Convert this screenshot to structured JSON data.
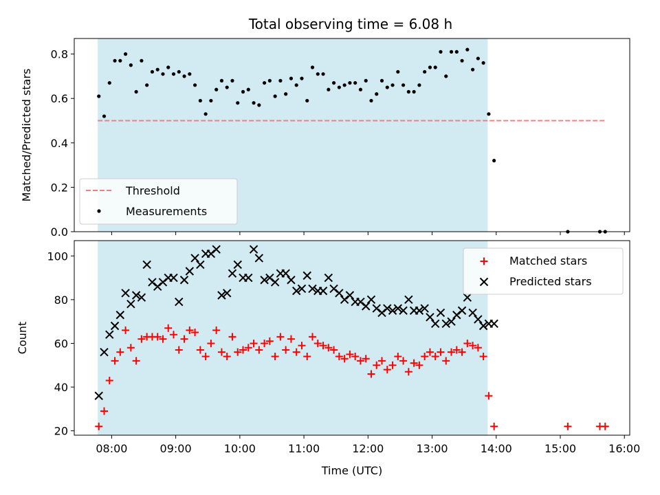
{
  "title": "Total observing time = 6.08 h",
  "colors": {
    "shade": "#add8e6",
    "threshold": "#f08080",
    "measurement": "#000000",
    "matched": "#ff0000",
    "predicted": "#000000"
  },
  "chart_data": [
    {
      "type": "scatter",
      "title": "Total observing time = 6.08 h",
      "xlabel": "",
      "ylabel": "Matched/Predicted stars",
      "ylim": [
        0,
        0.87
      ],
      "yticks": [
        "0.0",
        "0.2",
        "0.4",
        "0.6",
        "0.8"
      ],
      "shaded_span": [
        "07:47",
        "13:52"
      ],
      "legend_position": "lower-left",
      "threshold": {
        "name": "Threshold",
        "value": 0.5,
        "x_range": [
          "07:47",
          "15:42"
        ],
        "style": "dashed"
      },
      "series": [
        {
          "name": "Measurements",
          "x": [
            "07:48",
            "07:53",
            "07:58",
            "08:03",
            "08:08",
            "08:13",
            "08:18",
            "08:23",
            "08:28",
            "08:33",
            "08:38",
            "08:43",
            "08:48",
            "08:53",
            "08:58",
            "09:03",
            "09:08",
            "09:13",
            "09:18",
            "09:23",
            "09:28",
            "09:33",
            "09:38",
            "09:43",
            "09:48",
            "09:53",
            "09:58",
            "10:03",
            "10:08",
            "10:13",
            "10:18",
            "10:23",
            "10:28",
            "10:33",
            "10:38",
            "10:43",
            "10:48",
            "10:53",
            "10:58",
            "11:03",
            "11:08",
            "11:13",
            "11:18",
            "11:23",
            "11:28",
            "11:33",
            "11:38",
            "11:43",
            "11:48",
            "11:53",
            "11:58",
            "12:03",
            "12:08",
            "12:13",
            "12:18",
            "12:23",
            "12:28",
            "12:33",
            "12:38",
            "12:43",
            "12:48",
            "12:53",
            "12:58",
            "13:03",
            "13:08",
            "13:13",
            "13:18",
            "13:23",
            "13:28",
            "13:33",
            "13:38",
            "13:43",
            "13:48",
            "13:53",
            "13:58",
            "15:07",
            "15:37",
            "15:42"
          ],
          "y": [
            0.61,
            0.52,
            0.67,
            0.77,
            0.77,
            0.8,
            0.75,
            0.63,
            0.77,
            0.66,
            0.72,
            0.73,
            0.71,
            0.74,
            0.71,
            0.72,
            0.7,
            0.71,
            0.66,
            0.59,
            0.53,
            0.59,
            0.64,
            0.68,
            0.65,
            0.68,
            0.58,
            0.63,
            0.64,
            0.58,
            0.57,
            0.67,
            0.68,
            0.61,
            0.68,
            0.62,
            0.69,
            0.66,
            0.69,
            0.59,
            0.74,
            0.71,
            0.71,
            0.64,
            0.67,
            0.65,
            0.66,
            0.67,
            0.67,
            0.64,
            0.68,
            0.59,
            0.62,
            0.68,
            0.65,
            0.66,
            0.72,
            0.66,
            0.63,
            0.63,
            0.66,
            0.72,
            0.74,
            0.74,
            0.81,
            0.7,
            0.81,
            0.81,
            0.77,
            0.82,
            0.73,
            0.78,
            0.76,
            0.53,
            0.32,
            0.0,
            0.0,
            0.0
          ]
        }
      ]
    },
    {
      "type": "scatter",
      "xlabel": "Time (UTC)",
      "ylabel": "Count",
      "ylim": [
        18,
        107
      ],
      "yticks": [
        "20",
        "40",
        "60",
        "80",
        "100"
      ],
      "xticks": [
        "08:00",
        "09:00",
        "10:00",
        "11:00",
        "12:00",
        "13:00",
        "14:00",
        "15:00",
        "16:00"
      ],
      "xlim": [
        "07:25",
        "16:05"
      ],
      "shaded_span": [
        "07:47",
        "13:52"
      ],
      "legend_position": "upper-right",
      "series": [
        {
          "name": "Matched stars",
          "marker": "+",
          "x": [
            "07:48",
            "07:53",
            "07:58",
            "08:03",
            "08:08",
            "08:13",
            "08:18",
            "08:23",
            "08:28",
            "08:33",
            "08:38",
            "08:43",
            "08:48",
            "08:53",
            "08:58",
            "09:03",
            "09:08",
            "09:13",
            "09:18",
            "09:23",
            "09:28",
            "09:33",
            "09:38",
            "09:43",
            "09:48",
            "09:53",
            "09:58",
            "10:03",
            "10:08",
            "10:13",
            "10:18",
            "10:23",
            "10:28",
            "10:33",
            "10:38",
            "10:43",
            "10:48",
            "10:53",
            "10:58",
            "11:03",
            "11:08",
            "11:13",
            "11:18",
            "11:23",
            "11:28",
            "11:33",
            "11:38",
            "11:43",
            "11:48",
            "11:53",
            "11:58",
            "12:03",
            "12:08",
            "12:13",
            "12:18",
            "12:23",
            "12:28",
            "12:33",
            "12:38",
            "12:43",
            "12:48",
            "12:53",
            "12:58",
            "13:03",
            "13:08",
            "13:13",
            "13:18",
            "13:23",
            "13:28",
            "13:33",
            "13:38",
            "13:43",
            "13:48",
            "13:53",
            "13:58",
            "15:07",
            "15:37",
            "15:42"
          ],
          "y": [
            22,
            29,
            43,
            52,
            56,
            66,
            58,
            52,
            62,
            63,
            63,
            63,
            62,
            67,
            64,
            57,
            62,
            66,
            65,
            57,
            54,
            60,
            66,
            56,
            54,
            63,
            56,
            57,
            58,
            60,
            57,
            60,
            61,
            54,
            63,
            57,
            62,
            56,
            59,
            54,
            63,
            60,
            59,
            58,
            57,
            54,
            53,
            55,
            54,
            52,
            53,
            46,
            50,
            52,
            48,
            50,
            54,
            52,
            47,
            51,
            50,
            54,
            56,
            54,
            56,
            52,
            56,
            57,
            56,
            60,
            59,
            58,
            54,
            36,
            22,
            22,
            22,
            22
          ]
        },
        {
          "name": "Predicted stars",
          "marker": "x",
          "x": [
            "07:48",
            "07:53",
            "07:58",
            "08:03",
            "08:08",
            "08:13",
            "08:18",
            "08:23",
            "08:28",
            "08:33",
            "08:38",
            "08:43",
            "08:48",
            "08:53",
            "08:58",
            "09:03",
            "09:08",
            "09:13",
            "09:18",
            "09:23",
            "09:28",
            "09:33",
            "09:38",
            "09:43",
            "09:48",
            "09:53",
            "09:58",
            "10:03",
            "10:08",
            "10:13",
            "10:18",
            "10:23",
            "10:28",
            "10:33",
            "10:38",
            "10:43",
            "10:48",
            "10:53",
            "10:58",
            "11:03",
            "11:08",
            "11:13",
            "11:18",
            "11:23",
            "11:28",
            "11:33",
            "11:38",
            "11:43",
            "11:48",
            "11:53",
            "11:58",
            "12:03",
            "12:08",
            "12:13",
            "12:18",
            "12:23",
            "12:28",
            "12:33",
            "12:38",
            "12:43",
            "12:48",
            "12:53",
            "12:58",
            "13:03",
            "13:08",
            "13:13",
            "13:18",
            "13:23",
            "13:28",
            "13:33",
            "13:38",
            "13:43",
            "13:48",
            "13:53",
            "13:58"
          ],
          "y": [
            36,
            56,
            64,
            68,
            73,
            83,
            78,
            82,
            81,
            96,
            88,
            86,
            88,
            90,
            90,
            79,
            89,
            93,
            99,
            96,
            101,
            101,
            103,
            82,
            83,
            92,
            96,
            90,
            90,
            103,
            99,
            89,
            90,
            88,
            92,
            92,
            89,
            84,
            85,
            91,
            85,
            84,
            84,
            90,
            85,
            83,
            80,
            82,
            79,
            79,
            77,
            80,
            76,
            74,
            76,
            75,
            76,
            75,
            80,
            75,
            75,
            76,
            72,
            69,
            74,
            69,
            70,
            73,
            75,
            81,
            74,
            71,
            68,
            69,
            69
          ]
        }
      ]
    }
  ]
}
